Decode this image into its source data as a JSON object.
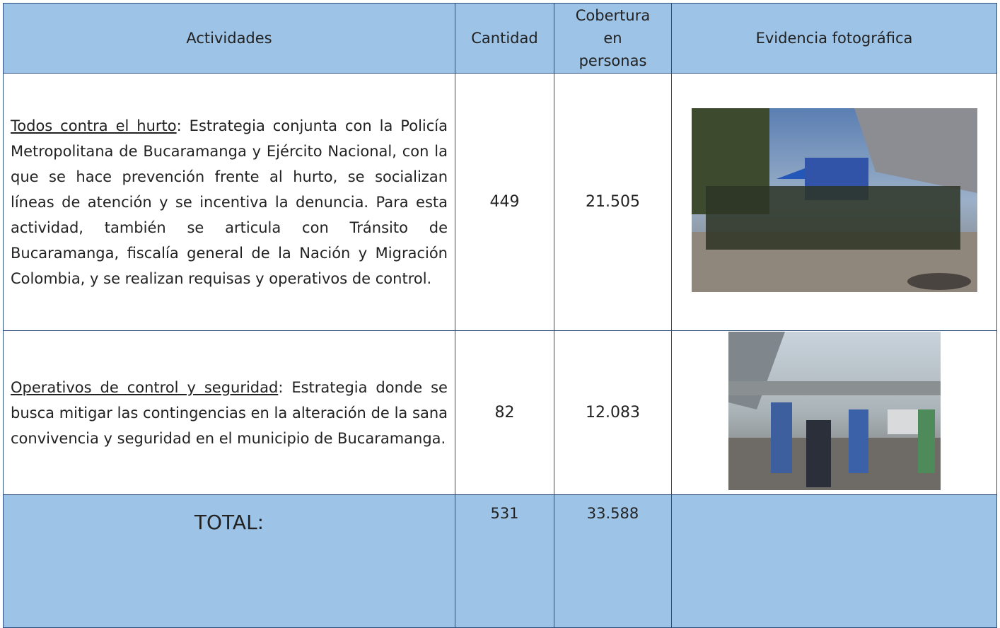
{
  "table": {
    "header": [
      "Actividades",
      "Cantidad",
      "Cobertura en personas",
      "Evidencia fotográfica"
    ],
    "rows": [
      {
        "title": "Todos contra el hurto",
        "text": ": Estrategia conjunta con la Policía Metropolitana de Bucaramanga y Ejército Nacional, con la que se hace prevención frente al hurto, se socializan líneas de atención y se incentiva la denuncia. Para esta actividad, también se articula con Tránsito de Bucaramanga, fiscalía general de la Nación y Migración Colombia, y se realizan requisas y operativos de control.",
        "cantidad": "449",
        "cobertura": "21.505"
      },
      {
        "title": "Operativos de control y seguridad",
        "text": ": Estrategia donde se busca mitigar las contingencias en la alteración de la sana convivencia y seguridad en el municipio de Bucaramanga.",
        "cantidad": "82",
        "cobertura": "12.083"
      }
    ],
    "total": {
      "label": "TOTAL:",
      "cantidad": "531",
      "cobertura": "33.588"
    }
  }
}
